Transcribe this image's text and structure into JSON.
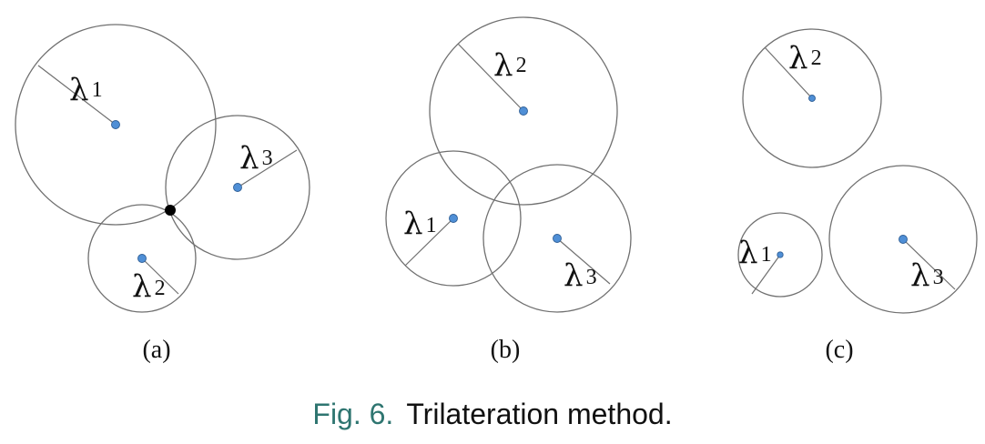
{
  "figure": {
    "caption_prefix": "Fig. 6.",
    "caption_text": "Trilateration method.",
    "colors": {
      "circle_stroke": "#707070",
      "anchor_fill": "#4f8fd6",
      "intersection_point": "#000000",
      "caption_prefix": "#2e7570"
    },
    "panels": [
      {
        "label": "(a)",
        "circles": [
          {
            "lambda_symbol": "λ",
            "subscript": "1"
          },
          {
            "lambda_symbol": "λ",
            "subscript": "3"
          },
          {
            "lambda_symbol": "λ",
            "subscript": "2"
          }
        ]
      },
      {
        "label": "(b)",
        "circles": [
          {
            "lambda_symbol": "λ",
            "subscript": "2"
          },
          {
            "lambda_symbol": "λ",
            "subscript": "1"
          },
          {
            "lambda_symbol": "λ",
            "subscript": "3"
          }
        ]
      },
      {
        "label": "(c)",
        "circles": [
          {
            "lambda_symbol": "λ",
            "subscript": "2"
          },
          {
            "lambda_symbol": "λ",
            "subscript": "1"
          },
          {
            "lambda_symbol": "λ",
            "subscript": "3"
          }
        ]
      }
    ]
  }
}
